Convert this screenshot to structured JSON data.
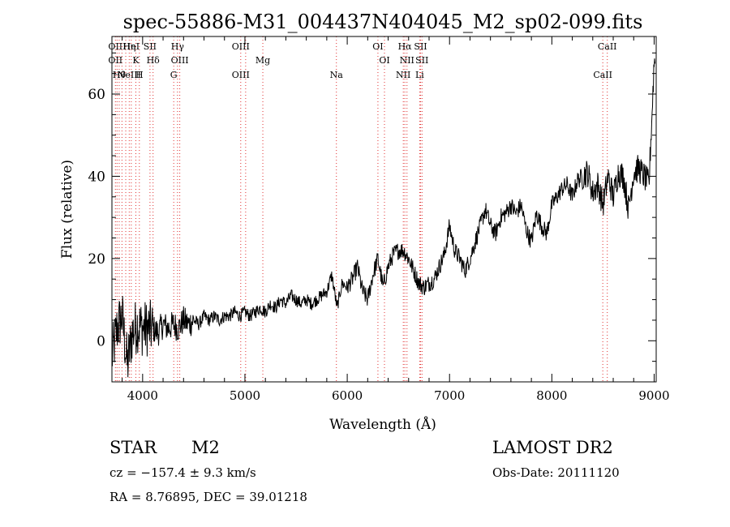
{
  "chart_data": {
    "type": "line",
    "title": "spec-55886-M31_004437N404045_M2_sp02-099.fits",
    "xlabel": "Wavelength (Å)",
    "ylabel": "Flux (relative)",
    "xlim": [
      3700,
      9020
    ],
    "ylim": [
      -10,
      74
    ],
    "x_ticks": [
      "4000",
      "5000",
      "6000",
      "7000",
      "8000",
      "9000"
    ],
    "y_ticks": [
      "0",
      "20",
      "40",
      "60"
    ],
    "x_tick_values": [
      4000,
      5000,
      6000,
      7000,
      8000,
      9000
    ],
    "y_tick_values": [
      0,
      20,
      40,
      60
    ],
    "grid": false,
    "series": [
      {
        "x": [
          3700,
          3750,
          3800,
          3850,
          3900,
          3950,
          4000,
          4050,
          4100,
          4150,
          4200,
          4250,
          4300,
          4350,
          4400,
          4450,
          4500,
          4550,
          4600,
          4650,
          4700,
          4750,
          4800,
          4850,
          4900,
          4950,
          5000,
          5050,
          5100,
          5150,
          5200,
          5250,
          5300,
          5350,
          5400,
          5450,
          5500,
          5550,
          5600,
          5650,
          5700,
          5750,
          5800,
          5850,
          5900,
          5950,
          6000,
          6050,
          6100,
          6150,
          6200,
          6250,
          6300,
          6350,
          6400,
          6450,
          6500,
          6550,
          6600,
          6650,
          6700,
          6750,
          6800,
          6850,
          6900,
          6950,
          7000,
          7050,
          7100,
          7150,
          7200,
          7250,
          7300,
          7350,
          7400,
          7450,
          7500,
          7550,
          7600,
          7650,
          7700,
          7750,
          7800,
          7850,
          7900,
          7950,
          8000,
          8050,
          8100,
          8150,
          8200,
          8250,
          8300,
          8350,
          8400,
          8450,
          8500,
          8550,
          8600,
          8650,
          8700,
          8750,
          8800,
          8850,
          8900,
          8950,
          9000
        ],
        "y": [
          -4,
          3,
          6,
          -6,
          2,
          4,
          3,
          3,
          3,
          2,
          4,
          3,
          4,
          3,
          5,
          4,
          5,
          4,
          6,
          5,
          6,
          5,
          6,
          6,
          7,
          6,
          7,
          6,
          7,
          8,
          7,
          9,
          8,
          10,
          9,
          11,
          10,
          9,
          10,
          9,
          10,
          11,
          12,
          16,
          8,
          14,
          13,
          15,
          18,
          12,
          10,
          16,
          20,
          13,
          18,
          21,
          22,
          22,
          20,
          17,
          14,
          13,
          14,
          15,
          18,
          21,
          28,
          22,
          20,
          17,
          20,
          24,
          28,
          32,
          28,
          26,
          30,
          31,
          33,
          31,
          33,
          27,
          24,
          31,
          28,
          26,
          33,
          35,
          37,
          38,
          35,
          39,
          40,
          41,
          36,
          38,
          33,
          40,
          35,
          41,
          40,
          32,
          41,
          42,
          40,
          38,
          68
        ]
      }
    ],
    "line_markers": [
      {
        "w": 3734,
        "labels": [
          "OII",
          "OII"
        ]
      },
      {
        "w": 3750,
        "labels": []
      },
      {
        "w": 3771,
        "labels": [
          "Hθ"
        ]
      },
      {
        "w": 3798,
        "labels": []
      },
      {
        "w": 3835,
        "labels": []
      },
      {
        "w": 3869,
        "labels": [
          "NeIII",
          "Hη"
        ]
      },
      {
        "w": 3889,
        "labels": [
          "HeI"
        ]
      },
      {
        "w": 3934,
        "labels": [
          "K"
        ]
      },
      {
        "w": 3968,
        "labels": [
          "H"
        ]
      },
      {
        "w": 4072,
        "labels": [
          "SII"
        ]
      },
      {
        "w": 4102,
        "labels": [
          "Hδ"
        ]
      },
      {
        "w": 4304,
        "labels": [
          "G"
        ]
      },
      {
        "w": 4341,
        "labels": [
          "Hγ"
        ]
      },
      {
        "w": 4363,
        "labels": [
          "OIII"
        ]
      },
      {
        "w": 4959,
        "labels": [
          "OIII",
          "OIII"
        ]
      },
      {
        "w": 5007,
        "labels": []
      },
      {
        "w": 5175,
        "labels": [
          "Mg"
        ]
      },
      {
        "w": 5894,
        "labels": [
          "Na"
        ]
      },
      {
        "w": 6300,
        "labels": [
          "OI"
        ]
      },
      {
        "w": 6364,
        "labels": [
          "OI"
        ]
      },
      {
        "w": 6548,
        "labels": [
          "NII"
        ]
      },
      {
        "w": 6563,
        "labels": [
          "Hα"
        ]
      },
      {
        "w": 6584,
        "labels": [
          "NII"
        ]
      },
      {
        "w": 6708,
        "labels": [
          "Li"
        ]
      },
      {
        "w": 6717,
        "labels": [
          "SII"
        ]
      },
      {
        "w": 6731,
        "labels": [
          "SII"
        ]
      },
      {
        "w": 8498,
        "labels": [
          "CaII"
        ]
      },
      {
        "w": 8542,
        "labels": [
          "CaII"
        ]
      }
    ]
  },
  "footer": {
    "object_type": "STAR",
    "subclass": "M2",
    "survey": "LAMOST DR2",
    "cz": "cz = −157.4 ± 9.3 km/s",
    "obs_date": "Obs-Date: 20111120",
    "coords": "RA =   8.76895, DEC =  39.01218"
  }
}
